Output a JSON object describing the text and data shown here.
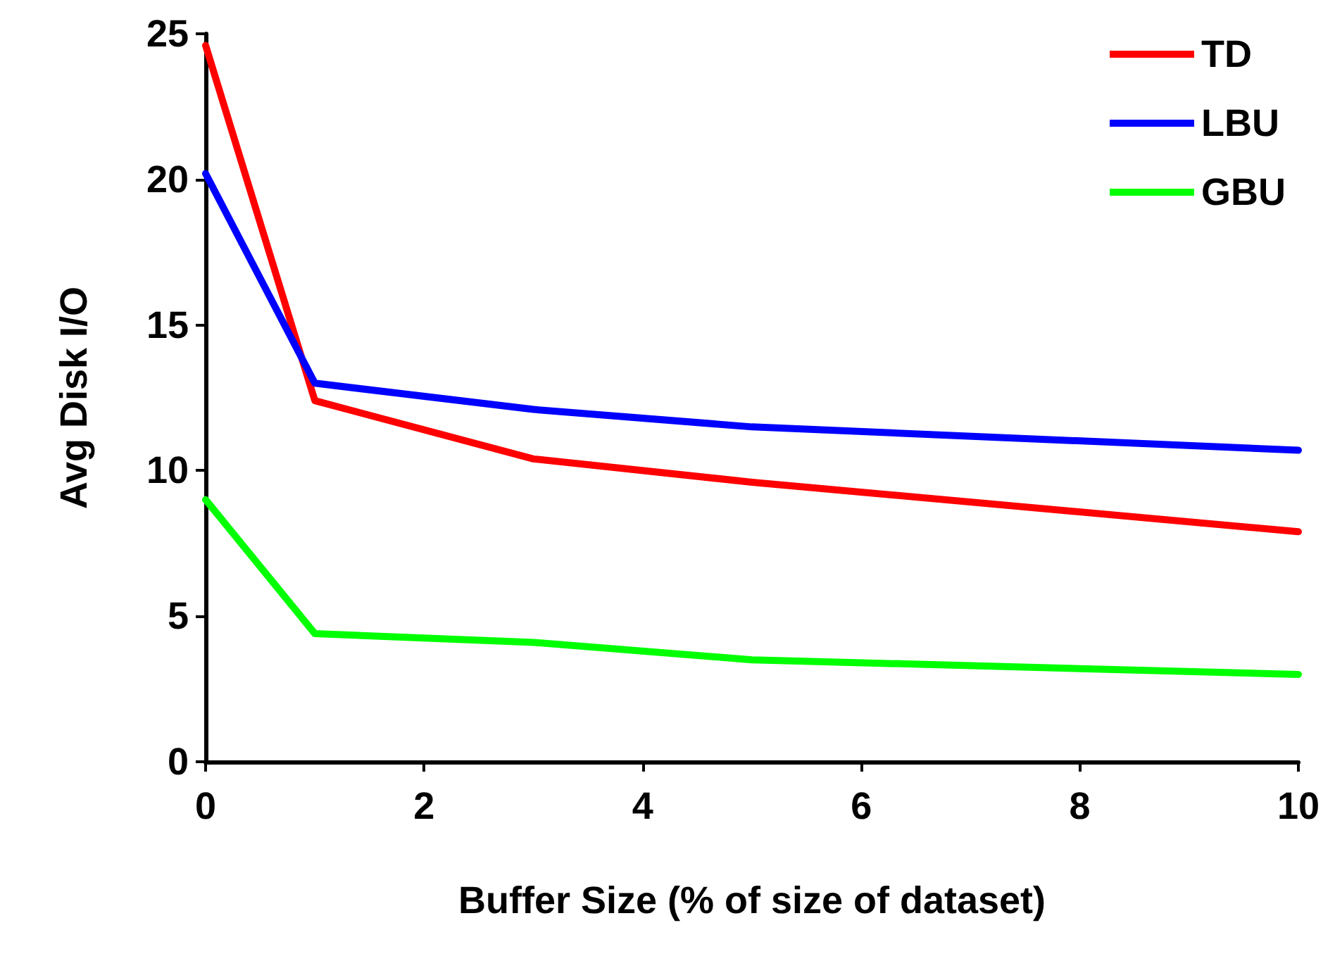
{
  "chart_data": {
    "type": "line",
    "xlabel": "Buffer Size (% of size of dataset)",
    "ylabel": "Avg Disk I/O",
    "x": [
      0,
      1,
      3,
      5,
      10
    ],
    "series": [
      {
        "name": "TD",
        "color": "#ff0000",
        "values": [
          24.6,
          12.4,
          10.4,
          9.6,
          7.9
        ]
      },
      {
        "name": "LBU",
        "color": "#0000ff",
        "values": [
          20.2,
          13.0,
          12.1,
          11.5,
          10.7
        ]
      },
      {
        "name": "GBU",
        "color": "#00ff00",
        "values": [
          9.0,
          4.4,
          4.1,
          3.5,
          3.0
        ]
      }
    ],
    "xlim": [
      0,
      10
    ],
    "xticks": [
      0,
      2,
      4,
      6,
      8,
      10
    ],
    "ylim": [
      0,
      25
    ],
    "yticks": [
      0,
      5,
      10,
      15,
      20,
      25
    ],
    "grid": false,
    "legend": "top right",
    "marker": "none",
    "line_style": "solid"
  }
}
